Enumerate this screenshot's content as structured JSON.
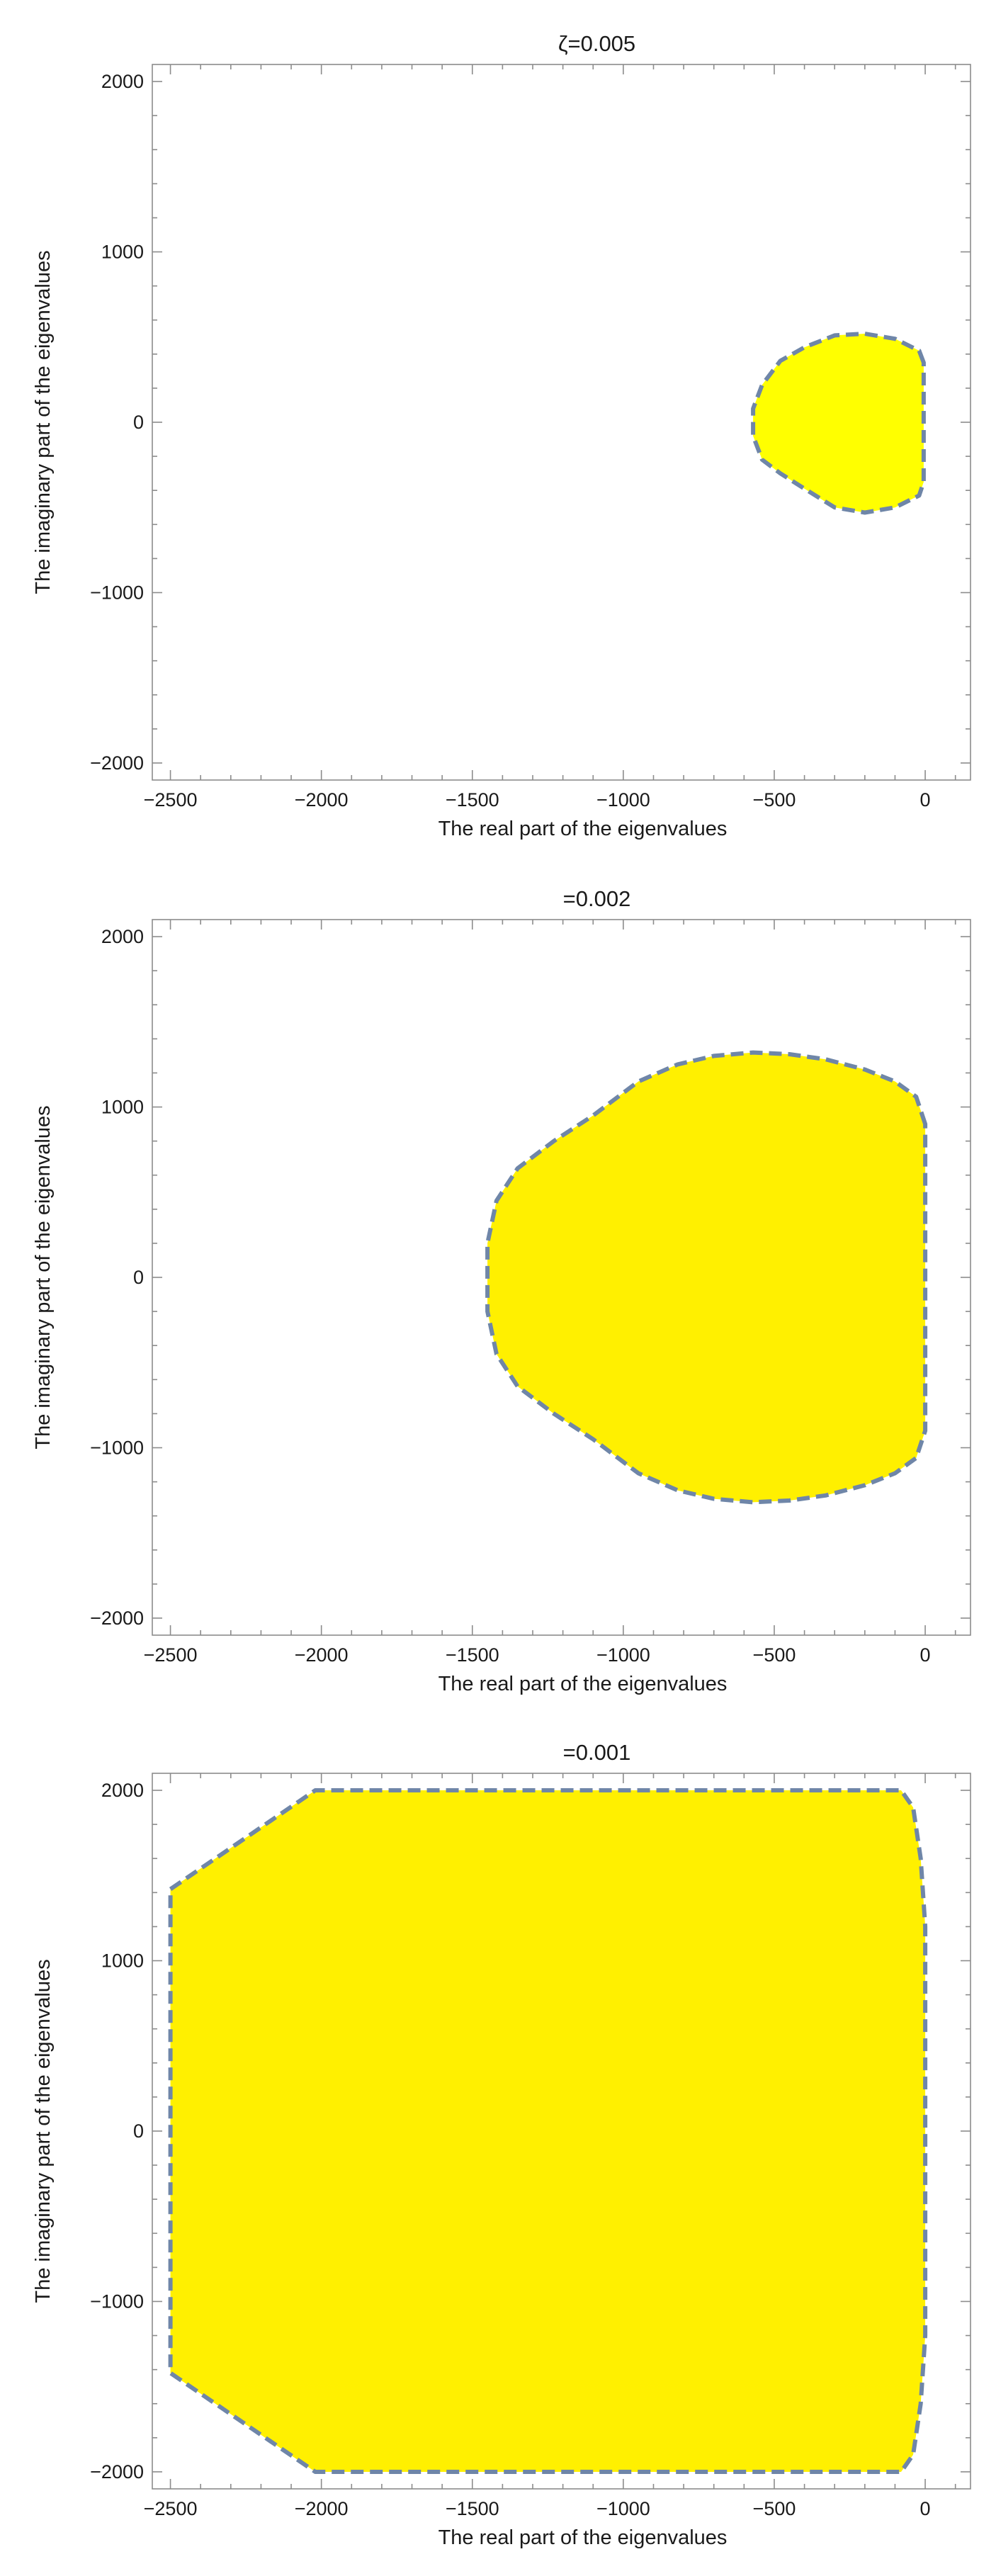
{
  "chart_data": [
    {
      "type": "area",
      "title": "ζ=0.005",
      "xlabel": "The real part of the eigenvalues",
      "ylabel": "The imaginary part of the eigenvalues",
      "xlim": [
        -2560,
        150
      ],
      "ylim": [
        -2100,
        2100
      ],
      "xticks": [
        -2500,
        -2000,
        -1500,
        -1000,
        -500,
        0
      ],
      "yticks": [
        -2000,
        -1000,
        0,
        1000,
        2000
      ],
      "fill_color": "#ffff00",
      "boundary_color": "#6f86a8",
      "boundary_style": "dashed",
      "region": [
        [
          -5,
          350
        ],
        [
          -20,
          420
        ],
        [
          -100,
          490
        ],
        [
          -200,
          520
        ],
        [
          -300,
          510
        ],
        [
          -400,
          440
        ],
        [
          -480,
          360
        ],
        [
          -540,
          220
        ],
        [
          -570,
          80
        ],
        [
          -570,
          -80
        ],
        [
          -540,
          -220
        ],
        [
          -480,
          -300
        ],
        [
          -400,
          -390
        ],
        [
          -300,
          -500
        ],
        [
          -200,
          -530
        ],
        [
          -100,
          -500
        ],
        [
          -20,
          -430
        ],
        [
          -5,
          -350
        ]
      ]
    },
    {
      "type": "area",
      "title": "=0.002",
      "xlabel": "The real part of the eigenvalues",
      "ylabel": "The imaginary part of the eigenvalues",
      "xlim": [
        -2560,
        150
      ],
      "ylim": [
        -2100,
        2100
      ],
      "xticks": [
        -2500,
        -2000,
        -1500,
        -1000,
        -500,
        0
      ],
      "yticks": [
        -2000,
        -1000,
        0,
        1000,
        2000
      ],
      "fill_color": "#fff000",
      "boundary_color": "#6f86a8",
      "boundary_style": "dashed",
      "region": [
        [
          0,
          900
        ],
        [
          -30,
          1060
        ],
        [
          -100,
          1150
        ],
        [
          -200,
          1220
        ],
        [
          -330,
          1280
        ],
        [
          -450,
          1310
        ],
        [
          -570,
          1320
        ],
        [
          -700,
          1300
        ],
        [
          -820,
          1250
        ],
        [
          -950,
          1150
        ],
        [
          -1100,
          950
        ],
        [
          -1230,
          800
        ],
        [
          -1350,
          640
        ],
        [
          -1420,
          450
        ],
        [
          -1450,
          200
        ],
        [
          -1450,
          -200
        ],
        [
          -1420,
          -450
        ],
        [
          -1350,
          -640
        ],
        [
          -1230,
          -800
        ],
        [
          -1100,
          -950
        ],
        [
          -950,
          -1150
        ],
        [
          -820,
          -1250
        ],
        [
          -700,
          -1300
        ],
        [
          -570,
          -1320
        ],
        [
          -450,
          -1310
        ],
        [
          -330,
          -1280
        ],
        [
          -200,
          -1220
        ],
        [
          -100,
          -1150
        ],
        [
          -30,
          -1060
        ],
        [
          0,
          -900
        ]
      ]
    },
    {
      "type": "area",
      "title": "=0.001",
      "xlabel": "The real part of the eigenvalues",
      "ylabel": "The imaginary part of the eigenvalues",
      "xlim": [
        -2560,
        150
      ],
      "ylim": [
        -2100,
        2100
      ],
      "xticks": [
        -2500,
        -2000,
        -1500,
        -1000,
        -500,
        0
      ],
      "yticks": [
        -2000,
        -1000,
        0,
        1000,
        2000
      ],
      "fill_color": "#fff000",
      "boundary_color": "#6f86a8",
      "boundary_style": "dashed",
      "region": [
        [
          -2500,
          1420
        ],
        [
          -2020,
          2000
        ],
        [
          -80,
          2000
        ],
        [
          -40,
          1900
        ],
        [
          -15,
          1600
        ],
        [
          0,
          1200
        ],
        [
          0,
          -1200
        ],
        [
          -15,
          -1600
        ],
        [
          -40,
          -1900
        ],
        [
          -80,
          -2000
        ],
        [
          -2020,
          -2000
        ],
        [
          -2500,
          -1420
        ]
      ]
    }
  ]
}
